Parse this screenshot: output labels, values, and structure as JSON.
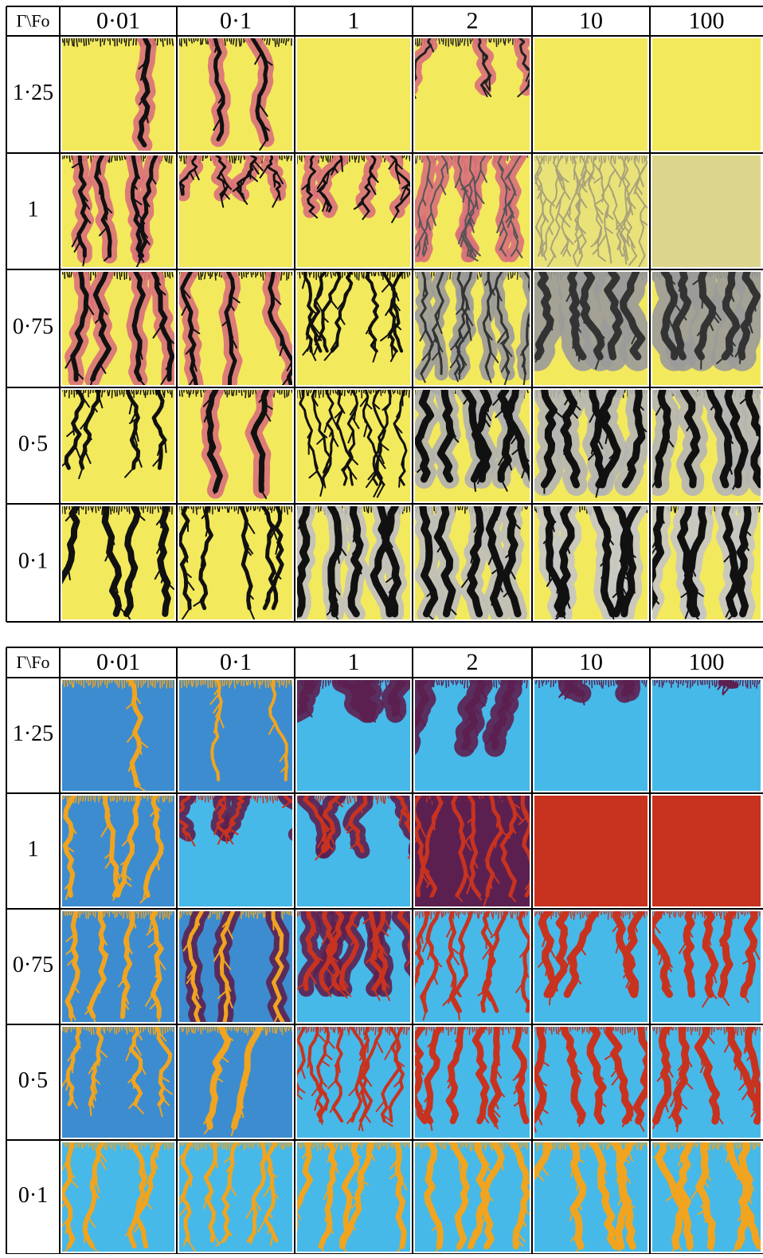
{
  "tables": [
    {
      "header": [
        "Γ\\Fo",
        "0·01",
        "0·1",
        "1",
        "2",
        "10",
        "100"
      ],
      "rows": [
        "1·25",
        "1",
        "0·75",
        "0·5",
        "0·1"
      ]
    },
    {
      "header": [
        "Γ\\Fo",
        "0·01",
        "0·1",
        "1",
        "2",
        "10",
        "100"
      ],
      "rows": [
        "1·25",
        "1",
        "0·75",
        "0·5",
        "0·1"
      ]
    }
  ]
}
